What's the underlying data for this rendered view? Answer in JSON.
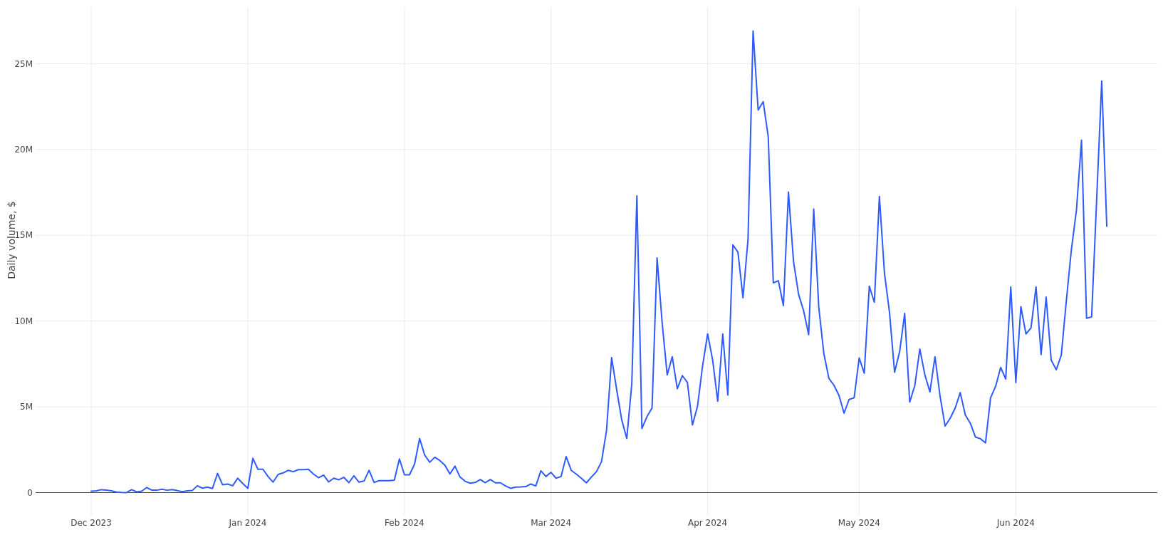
{
  "chart_data": {
    "type": "line",
    "ylabel": "Daily volume, $",
    "xlim": [
      "2023-11-20",
      "2024-06-29"
    ],
    "xticks": [
      {
        "value": "2023-12-01",
        "label": "Dec 2023"
      },
      {
        "value": "2024-01-01",
        "label": "Jan 2024"
      },
      {
        "value": "2024-02-01",
        "label": "Feb 2024"
      },
      {
        "value": "2024-03-01",
        "label": "Mar 2024"
      },
      {
        "value": "2024-04-01",
        "label": "Apr 2024"
      },
      {
        "value": "2024-05-01",
        "label": "May 2024"
      },
      {
        "value": "2024-06-01",
        "label": "Jun 2024"
      }
    ],
    "ylim": [
      -1.35,
      28.3
    ],
    "yticks": [
      {
        "value": 0,
        "label": "0"
      },
      {
        "value": 5,
        "label": "5M"
      },
      {
        "value": 10,
        "label": "10M"
      },
      {
        "value": 15,
        "label": "15M"
      },
      {
        "value": 20,
        "label": "20M"
      },
      {
        "value": 25,
        "label": "25M"
      }
    ],
    "grid": true,
    "marker": "none",
    "line_style": "solid",
    "x": [
      "2023-12-01",
      "2023-12-02",
      "2023-12-03",
      "2023-12-04",
      "2023-12-05",
      "2023-12-06",
      "2023-12-07",
      "2023-12-08",
      "2023-12-09",
      "2023-12-10",
      "2023-12-11",
      "2023-12-12",
      "2023-12-13",
      "2023-12-14",
      "2023-12-15",
      "2023-12-16",
      "2023-12-17",
      "2023-12-18",
      "2023-12-19",
      "2023-12-20",
      "2023-12-21",
      "2023-12-22",
      "2023-12-23",
      "2023-12-24",
      "2023-12-25",
      "2023-12-26",
      "2023-12-27",
      "2023-12-28",
      "2023-12-29",
      "2023-12-30",
      "2023-12-31",
      "2024-01-01",
      "2024-01-02",
      "2024-01-03",
      "2024-01-04",
      "2024-01-05",
      "2024-01-06",
      "2024-01-07",
      "2024-01-08",
      "2024-01-09",
      "2024-01-10",
      "2024-01-11",
      "2024-01-12",
      "2024-01-13",
      "2024-01-14",
      "2024-01-15",
      "2024-01-16",
      "2024-01-17",
      "2024-01-18",
      "2024-01-19",
      "2024-01-20",
      "2024-01-21",
      "2024-01-22",
      "2024-01-23",
      "2024-01-24",
      "2024-01-25",
      "2024-01-26",
      "2024-01-27",
      "2024-01-28",
      "2024-01-29",
      "2024-01-30",
      "2024-01-31",
      "2024-02-01",
      "2024-02-02",
      "2024-02-03",
      "2024-02-04",
      "2024-02-05",
      "2024-02-06",
      "2024-02-07",
      "2024-02-08",
      "2024-02-09",
      "2024-02-10",
      "2024-02-11",
      "2024-02-12",
      "2024-02-13",
      "2024-02-14",
      "2024-02-15",
      "2024-02-16",
      "2024-02-17",
      "2024-02-18",
      "2024-02-19",
      "2024-02-20",
      "2024-02-21",
      "2024-02-22",
      "2024-02-23",
      "2024-02-24",
      "2024-02-25",
      "2024-02-26",
      "2024-02-27",
      "2024-02-28",
      "2024-02-29",
      "2024-03-01",
      "2024-03-02",
      "2024-03-03",
      "2024-03-04",
      "2024-03-05",
      "2024-03-06",
      "2024-03-07",
      "2024-03-08",
      "2024-03-09",
      "2024-03-10",
      "2024-03-11",
      "2024-03-12",
      "2024-03-13",
      "2024-03-14",
      "2024-03-15",
      "2024-03-16",
      "2024-03-17",
      "2024-03-18",
      "2024-03-19",
      "2024-03-20",
      "2024-03-21",
      "2024-03-22",
      "2024-03-23",
      "2024-03-24",
      "2024-03-25",
      "2024-03-26",
      "2024-03-27",
      "2024-03-28",
      "2024-03-29",
      "2024-03-30",
      "2024-03-31",
      "2024-04-01",
      "2024-04-02",
      "2024-04-03",
      "2024-04-04",
      "2024-04-05",
      "2024-04-06",
      "2024-04-07",
      "2024-04-08",
      "2024-04-09",
      "2024-04-10",
      "2024-04-11",
      "2024-04-12",
      "2024-04-13",
      "2024-04-14",
      "2024-04-15",
      "2024-04-16",
      "2024-04-17",
      "2024-04-18",
      "2024-04-19",
      "2024-04-20",
      "2024-04-21",
      "2024-04-22",
      "2024-04-23",
      "2024-04-24",
      "2024-04-25",
      "2024-04-26",
      "2024-04-27",
      "2024-04-28",
      "2024-04-29",
      "2024-04-30",
      "2024-05-01",
      "2024-05-02",
      "2024-05-03",
      "2024-05-04",
      "2024-05-05",
      "2024-05-06",
      "2024-05-07",
      "2024-05-08",
      "2024-05-09",
      "2024-05-10",
      "2024-05-11",
      "2024-05-12",
      "2024-05-13",
      "2024-05-14",
      "2024-05-15",
      "2024-05-16",
      "2024-05-17",
      "2024-05-18",
      "2024-05-19",
      "2024-05-20",
      "2024-05-21",
      "2024-05-22",
      "2024-05-23",
      "2024-05-24",
      "2024-05-25",
      "2024-05-26",
      "2024-05-27",
      "2024-05-28",
      "2024-05-29",
      "2024-05-30",
      "2024-05-31",
      "2024-06-01",
      "2024-06-02",
      "2024-06-03",
      "2024-06-04",
      "2024-06-05",
      "2024-06-06",
      "2024-06-07",
      "2024-06-08",
      "2024-06-09",
      "2024-06-10",
      "2024-06-11",
      "2024-06-12",
      "2024-06-13",
      "2024-06-14",
      "2024-06-15",
      "2024-06-16",
      "2024-06-17",
      "2024-06-18",
      "2024-06-19"
    ],
    "series": [
      {
        "color": "#2e5bff",
        "values": [
          0.08,
          0.1,
          0.17,
          0.15,
          0.1,
          0.03,
          0.01,
          0.0,
          0.17,
          0.04,
          0.08,
          0.3,
          0.14,
          0.14,
          0.2,
          0.14,
          0.18,
          0.12,
          0.05,
          0.1,
          0.12,
          0.4,
          0.26,
          0.32,
          0.24,
          1.12,
          0.46,
          0.5,
          0.4,
          0.84,
          0.53,
          0.25,
          2.0,
          1.36,
          1.36,
          0.94,
          0.61,
          1.06,
          1.15,
          1.3,
          1.22,
          1.34,
          1.34,
          1.36,
          1.08,
          0.87,
          1.02,
          0.62,
          0.84,
          0.75,
          0.89,
          0.58,
          0.98,
          0.61,
          0.68,
          1.3,
          0.59,
          0.7,
          0.7,
          0.7,
          0.73,
          1.96,
          1.04,
          1.04,
          1.66,
          3.15,
          2.19,
          1.77,
          2.06,
          1.87,
          1.6,
          1.09,
          1.54,
          0.91,
          0.66,
          0.55,
          0.59,
          0.76,
          0.58,
          0.76,
          0.57,
          0.57,
          0.39,
          0.25,
          0.32,
          0.33,
          0.35,
          0.5,
          0.39,
          1.27,
          0.94,
          1.18,
          0.84,
          0.94,
          2.1,
          1.3,
          1.08,
          0.84,
          0.57,
          0.91,
          1.22,
          1.8,
          3.64,
          7.87,
          6.0,
          4.24,
          3.16,
          6.36,
          17.3,
          3.74,
          4.43,
          4.93,
          13.68,
          9.9,
          6.86,
          7.92,
          6.06,
          6.82,
          6.42,
          3.94,
          5.03,
          7.38,
          9.25,
          7.72,
          5.33,
          9.25,
          5.69,
          14.44,
          14.02,
          11.36,
          14.78,
          26.91,
          22.3,
          22.79,
          20.74,
          12.23,
          12.35,
          10.9,
          17.52,
          13.48,
          11.56,
          10.6,
          9.21,
          16.53,
          10.8,
          8.11,
          6.66,
          6.26,
          5.67,
          4.63,
          5.43,
          5.53,
          7.85,
          6.96,
          12.03,
          11.1,
          17.26,
          12.79,
          10.5,
          7.02,
          8.21,
          10.44,
          5.28,
          6.23,
          8.37,
          6.86,
          5.87,
          7.92,
          5.63,
          3.88,
          4.33,
          4.93,
          5.83,
          4.53,
          4.04,
          3.24,
          3.14,
          2.9,
          5.53,
          6.19,
          7.3,
          6.62,
          11.99,
          6.42,
          10.84,
          9.25,
          9.6,
          11.99,
          8.05,
          11.4,
          7.72,
          7.16,
          8.02,
          11.2,
          14.18,
          16.47,
          20.54,
          10.16,
          10.24,
          17.1,
          23.99,
          15.53
        ]
      }
    ]
  }
}
